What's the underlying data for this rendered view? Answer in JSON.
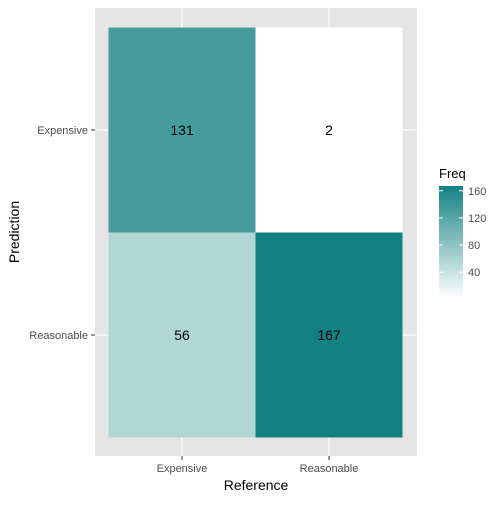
{
  "chart_data": {
    "type": "heatmap",
    "xlabel": "Reference",
    "ylabel": "Prediction",
    "x_categories": [
      "Expensive",
      "Reasonable"
    ],
    "y_categories": [
      "Expensive",
      "Reasonable"
    ],
    "cells": [
      {
        "x": "Expensive",
        "y": "Expensive",
        "value": 131
      },
      {
        "x": "Reasonable",
        "y": "Expensive",
        "value": 2
      },
      {
        "x": "Expensive",
        "y": "Reasonable",
        "value": 56
      },
      {
        "x": "Reasonable",
        "y": "Reasonable",
        "value": 167
      }
    ],
    "legend": {
      "title": "Freq",
      "ticks": [
        40,
        80,
        120,
        160
      ],
      "range": [
        2,
        167
      ],
      "low_color": "#ffffff",
      "high_color": "#138181",
      "placement": "right"
    },
    "grid": true,
    "panel_background": "#e5e5e5"
  }
}
